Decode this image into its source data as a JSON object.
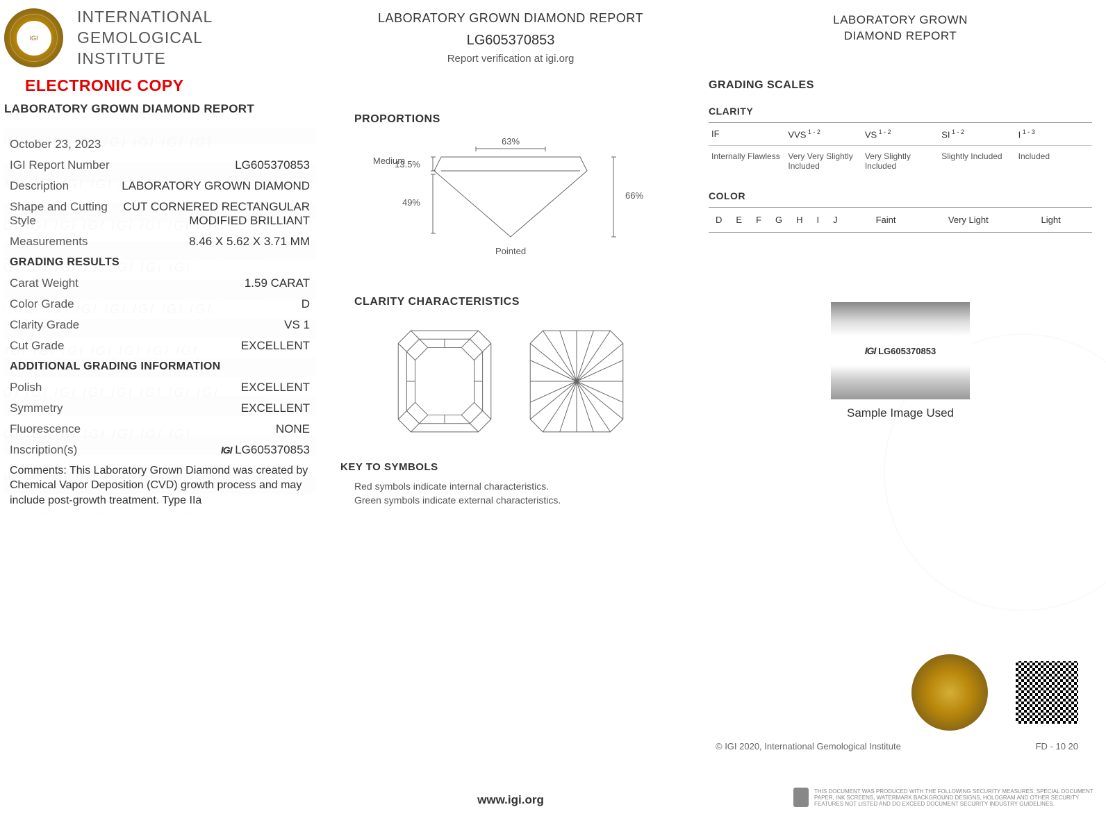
{
  "org": {
    "line1": "INTERNATIONAL",
    "line2": "GEMOLOGICAL",
    "line3": "INSTITUTE",
    "seal_text": "IGI"
  },
  "electronic_copy": "ELECTRONIC COPY",
  "report_title": "LABORATORY GROWN DIAMOND REPORT",
  "date": "October 23, 2023",
  "fields": {
    "report_number": {
      "label": "IGI Report Number",
      "value": "LG605370853"
    },
    "description": {
      "label": "Description",
      "value": "LABORATORY GROWN DIAMOND"
    },
    "shape": {
      "label": "Shape and Cutting Style",
      "value": "CUT CORNERED RECTANGULAR MODIFIED BRILLIANT"
    },
    "measurements": {
      "label": "Measurements",
      "value": "8.46 X 5.62 X 3.71 MM"
    }
  },
  "grading_results_hdr": "GRADING RESULTS",
  "grading": {
    "carat": {
      "label": "Carat Weight",
      "value": "1.59 CARAT"
    },
    "color": {
      "label": "Color Grade",
      "value": "D"
    },
    "clarity": {
      "label": "Clarity Grade",
      "value": "VS 1"
    },
    "cut": {
      "label": "Cut Grade",
      "value": "EXCELLENT"
    }
  },
  "additional_hdr": "ADDITIONAL GRADING INFORMATION",
  "additional": {
    "polish": {
      "label": "Polish",
      "value": "EXCELLENT"
    },
    "symmetry": {
      "label": "Symmetry",
      "value": "EXCELLENT"
    },
    "fluorescence": {
      "label": "Fluorescence",
      "value": "NONE"
    },
    "inscription": {
      "label": "Inscription(s)",
      "value": "LG605370853",
      "icon": "IGI"
    }
  },
  "comments": "Comments: This Laboratory Grown Diamond was created by Chemical Vapor Deposition (CVD) growth process and may include post-growth treatment. Type IIa",
  "center": {
    "title": "LABORATORY GROWN DIAMOND REPORT",
    "number": "LG605370853",
    "verify": "Report verification at igi.org",
    "proportions_hdr": "PROPORTIONS",
    "proportions": {
      "table": "63%",
      "crown": "13.5%",
      "pavilion": "49%",
      "depth": "66%",
      "girdle": "Medium",
      "culet": "Pointed"
    },
    "clarity_hdr": "CLARITY CHARACTERISTICS",
    "key_hdr": "KEY TO SYMBOLS",
    "key1": "Red symbols indicate internal characteristics.",
    "key2": "Green symbols indicate external characteristics."
  },
  "right": {
    "title1": "LABORATORY GROWN",
    "title2": "DIAMOND REPORT",
    "scales_hdr": "GRADING SCALES",
    "clarity_label": "CLARITY",
    "clarity_grades": [
      {
        "code": "IF",
        "sup": "",
        "desc": "Internally Flawless"
      },
      {
        "code": "VVS",
        "sup": "1 - 2",
        "desc": "Very Very Slightly Included"
      },
      {
        "code": "VS",
        "sup": "1 - 2",
        "desc": "Very Slightly Included"
      },
      {
        "code": "SI",
        "sup": "1 - 2",
        "desc": "Slightly Included"
      },
      {
        "code": "I",
        "sup": "1 - 3",
        "desc": "Included"
      }
    ],
    "color_label": "COLOR",
    "color_letters": [
      "D",
      "E",
      "F",
      "G",
      "H",
      "I",
      "J"
    ],
    "color_ranges": [
      "Faint",
      "Very Light",
      "Light"
    ],
    "sample_inscription": "LG605370853",
    "sample_caption": "Sample Image Used",
    "copyright": "© IGI 2020, International Gemological Institute",
    "fd": "FD - 10 20",
    "security": "THIS DOCUMENT WAS PRODUCED WITH THE FOLLOWING SECURITY MEASURES: SPECIAL DOCUMENT PAPER, INK SCREENS, WATERMARK BACKGROUND DESIGNS, HOLOGRAM AND OTHER SECURITY FEATURES NOT LISTED AND DO EXCEED DOCUMENT SECURITY INDUSTRY GUIDELINES."
  },
  "footer_url": "www.igi.org",
  "colors": {
    "accent": "#e60000",
    "gold": "#b8860b",
    "line": "#666",
    "text": "#333"
  }
}
